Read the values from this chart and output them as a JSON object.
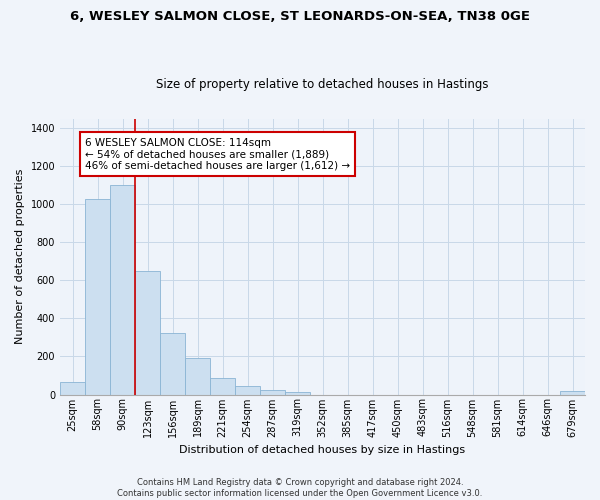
{
  "title": "6, WESLEY SALMON CLOSE, ST LEONARDS-ON-SEA, TN38 0GE",
  "subtitle": "Size of property relative to detached houses in Hastings",
  "xlabel": "Distribution of detached houses by size in Hastings",
  "ylabel": "Number of detached properties",
  "bar_labels": [
    "25sqm",
    "58sqm",
    "90sqm",
    "123sqm",
    "156sqm",
    "189sqm",
    "221sqm",
    "254sqm",
    "287sqm",
    "319sqm",
    "352sqm",
    "385sqm",
    "417sqm",
    "450sqm",
    "483sqm",
    "516sqm",
    "548sqm",
    "581sqm",
    "614sqm",
    "646sqm",
    "679sqm"
  ],
  "bar_values": [
    65,
    1025,
    1100,
    650,
    325,
    190,
    85,
    47,
    22,
    15,
    0,
    0,
    0,
    0,
    0,
    0,
    0,
    0,
    0,
    0,
    20
  ],
  "bar_color": "#ccdff0",
  "bar_edge_color": "#8ab4d4",
  "vline_x_index": 2,
  "vline_x_offset": 0.5,
  "vline_color": "#cc0000",
  "annotation_line1": "6 WESLEY SALMON CLOSE: 114sqm",
  "annotation_line2": "← 54% of detached houses are smaller (1,889)",
  "annotation_line3": "46% of semi-detached houses are larger (1,612) →",
  "annotation_box_color": "#ffffff",
  "annotation_box_edge_color": "#cc0000",
  "ylim": [
    0,
    1450
  ],
  "yticks": [
    0,
    200,
    400,
    600,
    800,
    1000,
    1200,
    1400
  ],
  "footnote_line1": "Contains HM Land Registry data © Crown copyright and database right 2024.",
  "footnote_line2": "Contains public sector information licensed under the Open Government Licence v3.0.",
  "bg_color": "#f0f4fa",
  "plot_bg_color": "#eef3fa",
  "grid_color": "#c8d8e8",
  "title_fontsize": 9.5,
  "subtitle_fontsize": 8.5,
  "ylabel_fontsize": 8,
  "xlabel_fontsize": 8,
  "tick_fontsize": 7,
  "annot_fontsize": 7.5,
  "footnote_fontsize": 6
}
